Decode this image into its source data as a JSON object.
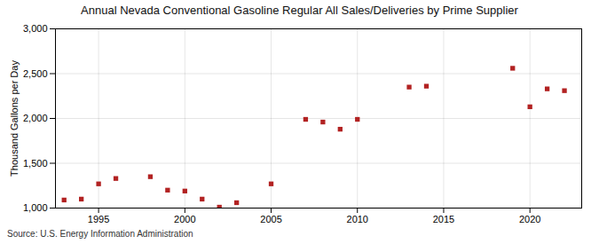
{
  "chart_data": {
    "type": "scatter",
    "title": "Annual Nevada Conventional Gasoline Regular All Sales/Deliveries by Prime Supplier",
    "ylabel": "Thousand Gallons per Day",
    "source": "Source: U.S. Energy Information Administration",
    "x": [
      1993,
      1994,
      1995,
      1996,
      1998,
      1999,
      2000,
      2001,
      2002,
      2003,
      2005,
      2007,
      2008,
      2009,
      2010,
      2013,
      2014,
      2019,
      2020,
      2021,
      2022
    ],
    "values": [
      1090,
      1100,
      1270,
      1330,
      1350,
      1200,
      1190,
      1100,
      1010,
      1060,
      1270,
      1990,
      1960,
      1880,
      1990,
      2350,
      2360,
      2560,
      2130,
      2330,
      2310
    ],
    "color": "#b22222",
    "marker": "square",
    "xlim": [
      1992.5,
      2023
    ],
    "xticks": [
      1995,
      2000,
      2005,
      2010,
      2015,
      2020
    ],
    "ylim": [
      1000,
      3000
    ],
    "yticks": [
      {
        "value": 1000,
        "label": "1,000"
      },
      {
        "value": 1500,
        "label": "1,500"
      },
      {
        "value": 2000,
        "label": "2,000"
      },
      {
        "value": 2500,
        "label": "2,500"
      },
      {
        "value": 3000,
        "label": "3,000"
      }
    ],
    "grid": true
  }
}
